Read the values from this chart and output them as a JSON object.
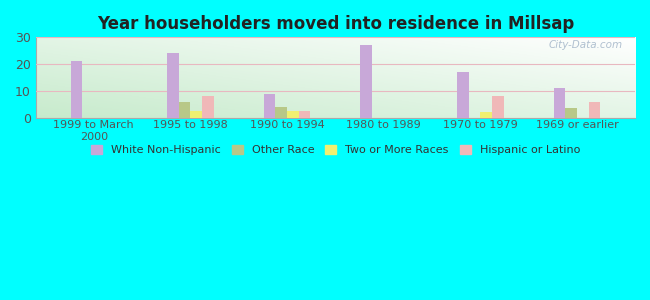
{
  "title": "Year householders moved into residence in Millsap",
  "categories": [
    "1999 to March\n2000",
    "1995 to 1998",
    "1990 to 1994",
    "1980 to 1989",
    "1970 to 1979",
    "1969 or earlier"
  ],
  "series": {
    "White Non-Hispanic": [
      21,
      24,
      9,
      27,
      17,
      11
    ],
    "Other Race": [
      0,
      6,
      4,
      0,
      0,
      3.5
    ],
    "Two or More Races": [
      0,
      2.5,
      2.5,
      0,
      2,
      0
    ],
    "Hispanic or Latino": [
      0,
      8,
      2.5,
      0,
      8,
      6
    ]
  },
  "colors": {
    "White Non-Hispanic": "#c8a8d8",
    "Other Race": "#b8c888",
    "Two or More Races": "#f0f070",
    "Hispanic or Latino": "#f0b8b8"
  },
  "ylim": [
    0,
    30
  ],
  "yticks": [
    0,
    10,
    20,
    30
  ],
  "bar_width": 0.12,
  "background_color": "#00ffff",
  "watermark": "City-Data.com"
}
